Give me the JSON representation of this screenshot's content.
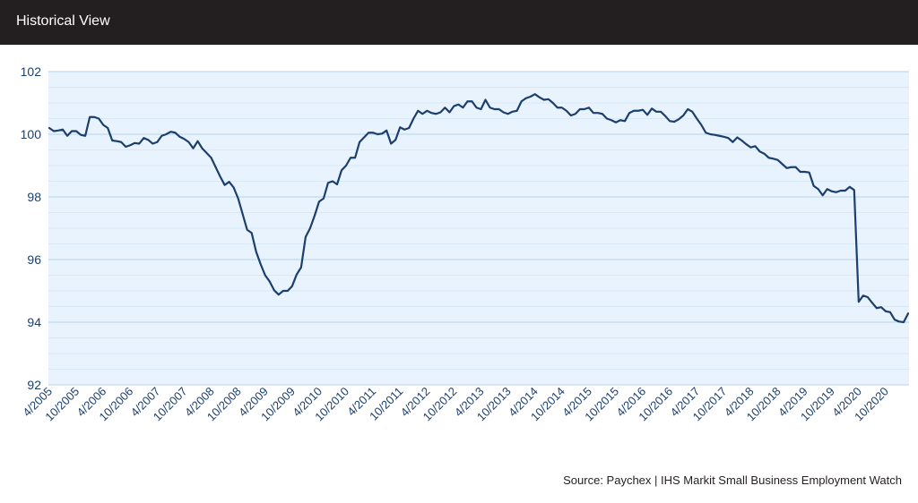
{
  "header": {
    "title": "Historical View"
  },
  "source": "Source: Paychex | IHS Markit Small Business Employment Watch",
  "colors": {
    "header_bg": "#231f20",
    "plot_bg": "#e8f3fd",
    "line": "#1c3f6e",
    "grid_major": "#b9d3ea",
    "grid_minor": "#d3e4f3"
  },
  "chart_data": {
    "type": "line",
    "title": "",
    "xlabel": "",
    "ylabel": "",
    "ylim": [
      92,
      102
    ],
    "yticks": [
      "92",
      "94",
      "96",
      "98",
      "100",
      "102"
    ],
    "xticks": [
      "4/2005",
      "10/2005",
      "4/2006",
      "10/2006",
      "4/2007",
      "10/2007",
      "4/2008",
      "10/2008",
      "4/2009",
      "10/2009",
      "4/2010",
      "10/2010",
      "4/2011",
      "10/2011",
      "4/2012",
      "10/2012",
      "4/2013",
      "10/2013",
      "4/2014",
      "10/2014",
      "4/2015",
      "10/2015",
      "4/2016",
      "10/2016",
      "4/2017",
      "10/2017",
      "4/2018",
      "10/2018",
      "4/2019",
      "10/2019",
      "4/2020",
      "10/2020"
    ],
    "grid": true,
    "legend": "none",
    "series": [
      {
        "start": "4/2005",
        "frequency": "monthly",
        "values": [
          100.2,
          100.1,
          100.12,
          100.15,
          99.95,
          100.1,
          100.1,
          99.98,
          99.95,
          100.55,
          100.55,
          100.5,
          100.3,
          100.2,
          99.8,
          99.78,
          99.75,
          99.6,
          99.65,
          99.72,
          99.7,
          99.88,
          99.82,
          99.7,
          99.75,
          99.95,
          100.0,
          100.08,
          100.05,
          99.92,
          99.85,
          99.75,
          99.55,
          99.78,
          99.55,
          99.4,
          99.25,
          98.95,
          98.65,
          98.38,
          98.48,
          98.3,
          97.95,
          97.45,
          96.95,
          96.85,
          96.25,
          95.85,
          95.5,
          95.3,
          95.02,
          94.88,
          95.0,
          95.0,
          95.15,
          95.52,
          95.75,
          96.72,
          97.0,
          97.4,
          97.85,
          97.95,
          98.45,
          98.5,
          98.4,
          98.85,
          99.0,
          99.25,
          99.25,
          99.75,
          99.9,
          100.05,
          100.05,
          100.0,
          100.02,
          100.12,
          99.7,
          99.82,
          100.22,
          100.15,
          100.2,
          100.5,
          100.75,
          100.65,
          100.75,
          100.68,
          100.65,
          100.7,
          100.85,
          100.7,
          100.9,
          100.95,
          100.85,
          101.05,
          101.05,
          100.85,
          100.8,
          101.1,
          100.85,
          100.8,
          100.8,
          100.7,
          100.65,
          100.72,
          100.75,
          101.05,
          101.15,
          101.2,
          101.28,
          101.18,
          101.1,
          101.12,
          101.0,
          100.85,
          100.85,
          100.75,
          100.6,
          100.65,
          100.8,
          100.8,
          100.85,
          100.68,
          100.68,
          100.65,
          100.5,
          100.45,
          100.38,
          100.45,
          100.42,
          100.68,
          100.75,
          100.75,
          100.78,
          100.62,
          100.82,
          100.72,
          100.72,
          100.58,
          100.42,
          100.4,
          100.48,
          100.6,
          100.8,
          100.72,
          100.5,
          100.3,
          100.05,
          100.0,
          99.98,
          99.95,
          99.92,
          99.88,
          99.75,
          99.9,
          99.8,
          99.68,
          99.58,
          99.62,
          99.45,
          99.38,
          99.25,
          99.22,
          99.18,
          99.05,
          98.92,
          98.95,
          98.95,
          98.8,
          98.8,
          98.78,
          98.35,
          98.25,
          98.05,
          98.25,
          98.18,
          98.15,
          98.2,
          98.2,
          98.32,
          98.22,
          94.65,
          94.85,
          94.8,
          94.62,
          94.45,
          94.48,
          94.35,
          94.32,
          94.08,
          94.02,
          94.0,
          94.28
        ]
      }
    ]
  }
}
